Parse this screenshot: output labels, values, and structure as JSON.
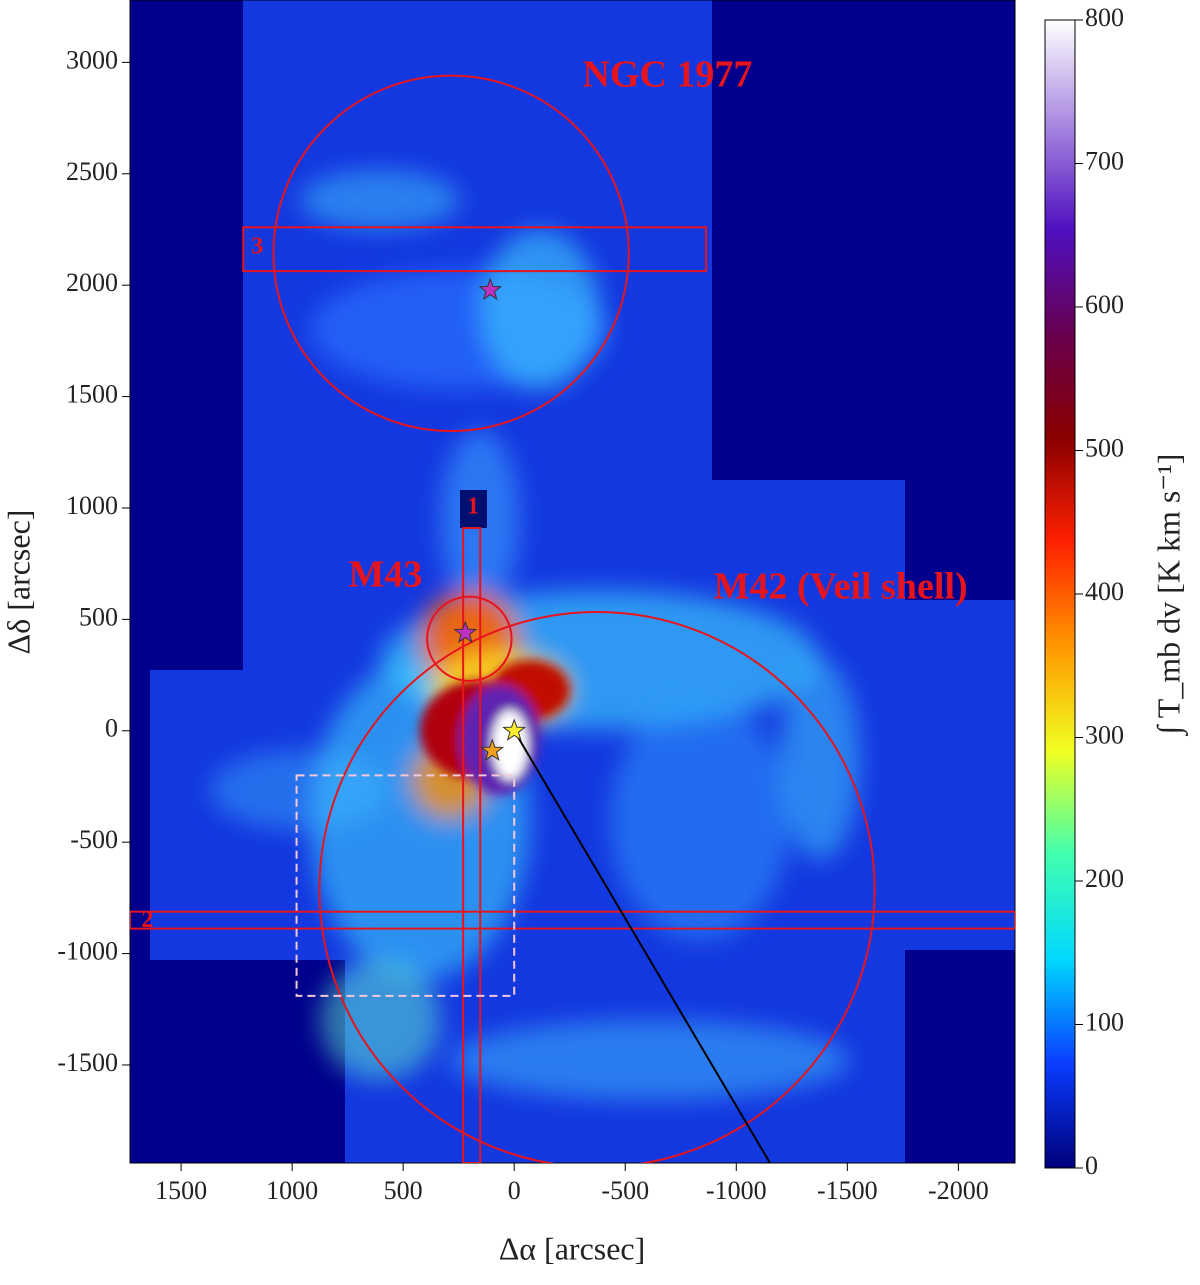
{
  "chart_data": {
    "type": "image-map",
    "x_label": "Δα [arcsec]",
    "y_label": "Δδ [arcsec]",
    "xlim": [
      1730,
      -2255
    ],
    "ylim": [
      -1940,
      3280
    ],
    "xticks": [
      1500,
      1000,
      500,
      0,
      -500,
      -1000,
      -1500,
      -2000
    ],
    "yticks": [
      -1500,
      -1000,
      -500,
      0,
      500,
      1000,
      1500,
      2000,
      2500,
      3000
    ],
    "colorbar": {
      "label": "∫ T_mb dv  [K km s⁻¹]",
      "lim": [
        0,
        800
      ],
      "ticks": [
        0,
        100,
        200,
        300,
        400,
        500,
        600,
        700,
        800
      ],
      "colors": [
        "#00007a",
        "#0a3cff",
        "#00d8ff",
        "#40ffb0",
        "#f0ff20",
        "#ff9800",
        "#ff2000",
        "#8a0000",
        "#680050",
        "#5010c0",
        "#a888e0",
        "#ffffff"
      ]
    },
    "region_color": "#e8141c",
    "circles": [
      {
        "x": 284,
        "y": 2143,
        "r": 800
      },
      {
        "x": 202,
        "y": 413,
        "r": 190
      },
      {
        "x": -373,
        "y": -713,
        "r": 1250
      }
    ],
    "boxes": [
      {
        "x": [
          1220,
          -864
        ],
        "y": [
          2063,
          2260
        ]
      },
      {
        "x": [
          1730,
          -2255
        ],
        "y": [
          -888,
          -812
        ]
      },
      {
        "x": [
          230,
          153
        ],
        "y": [
          -1940,
          910
        ]
      }
    ],
    "dashed_box": {
      "x": [
        980,
        0
      ],
      "y": [
        -1190,
        -200
      ],
      "color": "#f4c8d8"
    },
    "line": {
      "x": [
        0,
        -1152
      ],
      "y": [
        0,
        -1940
      ],
      "color": "#000000"
    },
    "stars": [
      {
        "x": 108,
        "y": 1978,
        "color": "#c030c0"
      },
      {
        "x": 220,
        "y": 439,
        "color": "#c030c0"
      },
      {
        "x": 0,
        "y": 0,
        "color": "#ffee30"
      },
      {
        "x": 99,
        "y": -90,
        "color": "#f0a020"
      }
    ],
    "labels": [
      {
        "text": "NGC 1977",
        "x": -690,
        "y": 2930
      },
      {
        "text": "M43",
        "x": 580,
        "y": 686
      },
      {
        "text": "M42 (Veil shell)",
        "x": -1470,
        "y": 632
      },
      {
        "text": "3",
        "x": 1157,
        "y": 2166
      },
      {
        "text": "2",
        "x": 1652,
        "y": -856
      },
      {
        "text": "1",
        "x": 185,
        "y": 1000
      }
    ]
  }
}
